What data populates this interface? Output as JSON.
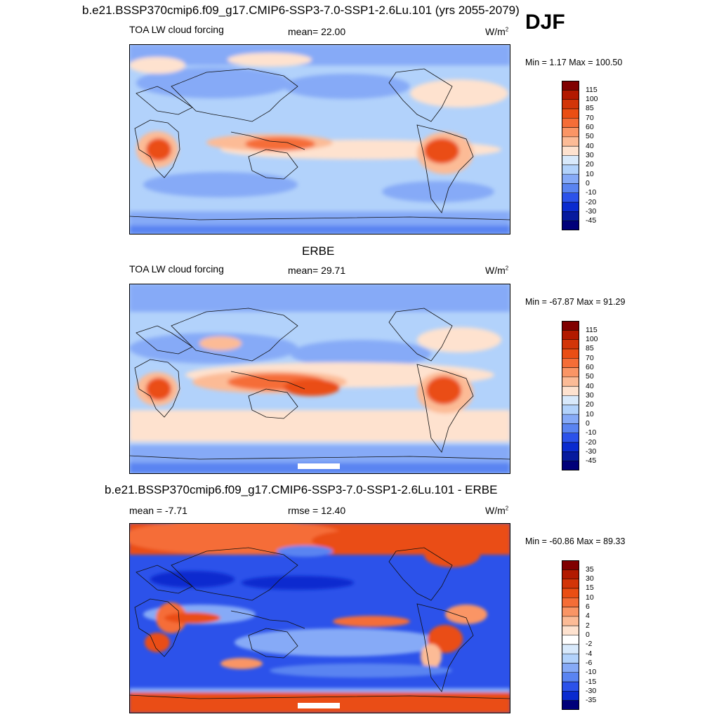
{
  "header": {
    "title": "b.e21.BSSP370cmip6.f09_g17.CMIP6-SSP3-7.0-SSP1-2.6Lu.101 (yrs 2055-2079)",
    "season": "DJF"
  },
  "panels": [
    {
      "title": "",
      "left_label": "TOA LW cloud forcing",
      "center_label": "mean=  22.00",
      "units_base": "W/m",
      "units_exp": "2",
      "minmax": "Min =   1.17 Max = 100.50",
      "colorbar": {
        "labels": [
          "115",
          "100",
          "85",
          "70",
          "60",
          "50",
          "40",
          "30",
          "20",
          "10",
          "0",
          "-10",
          "-20",
          "-30",
          "-45"
        ],
        "colors": [
          "#800000",
          "#b21a00",
          "#d23508",
          "#ea4e14",
          "#f56d37",
          "#fa9565",
          "#fcbb96",
          "#fee2cf",
          "#d8e9fb",
          "#b2d2fb",
          "#86aaf7",
          "#5a84f1",
          "#2c52ea",
          "#0a2bcf",
          "#061a9e",
          "#000079"
        ]
      }
    },
    {
      "title": "ERBE",
      "left_label": "TOA LW cloud forcing",
      "center_label": "mean=  29.71",
      "units_base": "W/m",
      "units_exp": "2",
      "minmax": "Min = -67.87 Max =  91.29",
      "colorbar": {
        "labels": [
          "115",
          "100",
          "85",
          "70",
          "60",
          "50",
          "40",
          "30",
          "20",
          "10",
          "0",
          "-10",
          "-20",
          "-30",
          "-45"
        ],
        "colors": [
          "#800000",
          "#b21a00",
          "#d23508",
          "#ea4e14",
          "#f56d37",
          "#fa9565",
          "#fcbb96",
          "#fee2cf",
          "#d8e9fb",
          "#b2d2fb",
          "#86aaf7",
          "#5a84f1",
          "#2c52ea",
          "#0a2bcf",
          "#061a9e",
          "#000079"
        ]
      }
    },
    {
      "title": "b.e21.BSSP370cmip6.f09_g17.CMIP6-SSP3-7.0-SSP1-2.6Lu.101 - ERBE",
      "left_label": "mean =  -7.71",
      "center_label": "rmse =  12.40",
      "units_base": "W/m",
      "units_exp": "2",
      "minmax": "Min = -60.86 Max =  89.33",
      "colorbar": {
        "labels": [
          "35",
          "30",
          "15",
          "10",
          "6",
          "4",
          "2",
          "0",
          "-2",
          "-4",
          "-6",
          "-10",
          "-15",
          "-30",
          "-35"
        ],
        "colors": [
          "#800000",
          "#b21a00",
          "#d23508",
          "#ea4e14",
          "#f56d37",
          "#fa9565",
          "#fcbb96",
          "#fee2cf",
          "#ffffff",
          "#d8e9fb",
          "#b2d2fb",
          "#86aaf7",
          "#5a84f1",
          "#2c52ea",
          "#0a2bcf",
          "#000079"
        ]
      }
    }
  ]
}
